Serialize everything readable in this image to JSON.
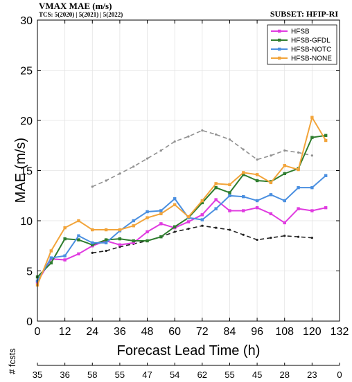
{
  "header": {
    "title": "VMAX MAE (m/s)",
    "tcs": "TCS: 5(2020) | 5(2021) | 5(2022)",
    "subset": "SUBSET: HFIP-RI"
  },
  "colors": {
    "HFSB": "#e03be0",
    "HFSB-GFDL": "#2e7d2e",
    "HFSB-NOTC": "#4a8fe0",
    "HFSB-NONE": "#f2a43a",
    "ref_upper": "#909090",
    "ref_lower": "#222222"
  },
  "chart_data": {
    "type": "line",
    "xlabel": "Forecast Lead Time (h)",
    "ylabel": "MAE (m/s)",
    "xlim": [
      0,
      132
    ],
    "ylim": [
      0,
      30
    ],
    "xticks": [
      0,
      12,
      24,
      36,
      48,
      60,
      72,
      84,
      96,
      108,
      120,
      132
    ],
    "yticks": [
      0,
      5,
      10,
      15,
      20,
      25,
      30
    ],
    "legend_position": "top-right",
    "x": [
      0,
      6,
      12,
      18,
      24,
      30,
      36,
      42,
      48,
      54,
      60,
      66,
      72,
      78,
      84,
      90,
      96,
      102,
      108,
      114,
      120,
      126
    ],
    "series": [
      {
        "name": "HFSB",
        "color": "#e03be0",
        "values": [
          3.9,
          6.2,
          6.1,
          6.7,
          7.5,
          8.0,
          7.6,
          7.8,
          8.9,
          9.7,
          9.3,
          9.9,
          10.6,
          12.1,
          11.0,
          11.0,
          11.3,
          10.7,
          9.8,
          11.2,
          11.0,
          11.3
        ]
      },
      {
        "name": "HFSB-GFDL",
        "color": "#2e7d2e",
        "values": [
          4.4,
          5.8,
          8.2,
          8.1,
          7.6,
          8.1,
          8.2,
          8.0,
          8.0,
          8.4,
          9.4,
          10.3,
          11.8,
          13.3,
          12.8,
          14.6,
          14.0,
          13.9,
          14.7,
          15.2,
          18.3,
          18.5
        ]
      },
      {
        "name": "HFSB-NOTC",
        "color": "#4a8fe0",
        "values": [
          4.0,
          6.3,
          6.5,
          8.5,
          7.8,
          7.8,
          9.0,
          10.0,
          10.9,
          11.0,
          12.2,
          10.3,
          10.1,
          11.2,
          12.5,
          12.4,
          12.0,
          12.6,
          12.0,
          13.3,
          13.3,
          14.5
        ]
      },
      {
        "name": "HFSB-NONE",
        "color": "#f2a43a",
        "values": [
          3.6,
          7.0,
          9.3,
          10.0,
          9.1,
          9.1,
          9.1,
          9.5,
          10.3,
          10.7,
          11.6,
          10.4,
          12.0,
          13.7,
          13.6,
          14.8,
          14.6,
          13.8,
          15.5,
          15.1,
          20.3,
          18.0
        ]
      }
    ],
    "reference_lines": [
      {
        "color": "#909090",
        "x": [
          24,
          30,
          36,
          42,
          48,
          54,
          60,
          66,
          72,
          78,
          84,
          90,
          96,
          102,
          108,
          114,
          120
        ],
        "values": [
          13.4,
          14.0,
          14.7,
          15.4,
          16.2,
          17.0,
          17.9,
          18.4,
          19.0,
          18.6,
          18.1,
          17.1,
          16.1,
          16.5,
          17.0,
          16.8,
          16.5
        ]
      },
      {
        "color": "#222222",
        "x": [
          24,
          30,
          36,
          42,
          48,
          54,
          60,
          66,
          72,
          78,
          84,
          90,
          96,
          102,
          108,
          114,
          120
        ],
        "values": [
          6.8,
          7.0,
          7.4,
          7.7,
          8.0,
          8.4,
          8.9,
          9.2,
          9.5,
          9.3,
          9.1,
          8.6,
          8.1,
          8.3,
          8.5,
          8.4,
          8.3
        ]
      }
    ],
    "fcsts": {
      "label": "# fcsts",
      "ticks": [
        0,
        12,
        24,
        36,
        48,
        60,
        72,
        84,
        96,
        108,
        120,
        132
      ],
      "tick_labels": [
        "35",
        "36",
        "58",
        "55",
        "47",
        "54",
        "62",
        "55",
        "45",
        "28",
        "23",
        "0"
      ]
    }
  }
}
